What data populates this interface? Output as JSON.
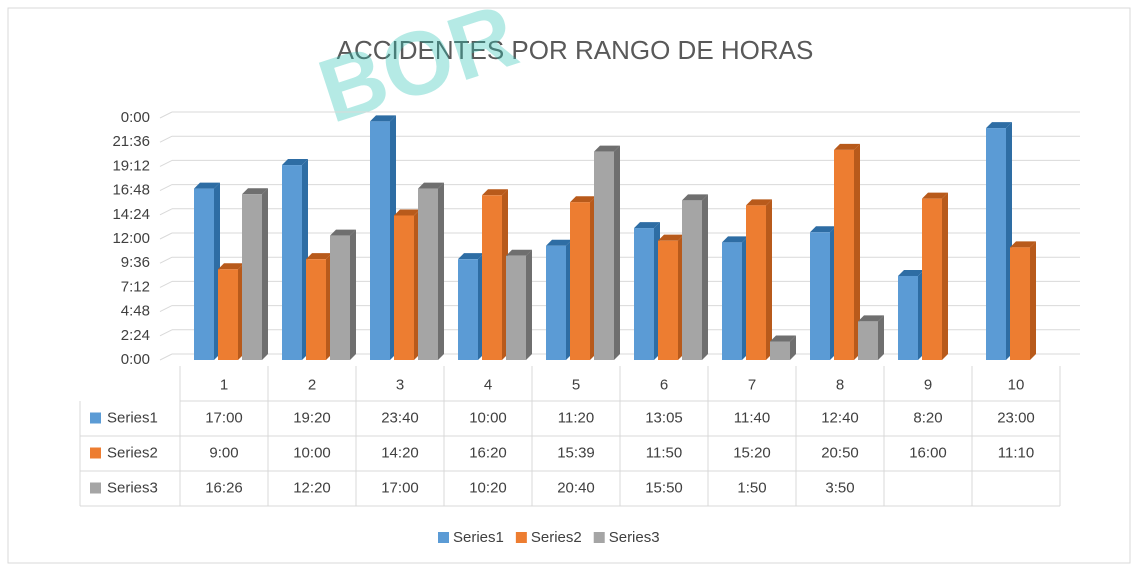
{
  "chart_data": {
    "type": "bar3d",
    "title": "ACCIDENTES POR RANGO DE HORAS",
    "watermark": "BOR",
    "categories": [
      "1",
      "2",
      "3",
      "4",
      "5",
      "6",
      "7",
      "8",
      "9",
      "10"
    ],
    "ylim": [
      0,
      1440
    ],
    "yticks": [
      {
        "value": 0,
        "label": "0:00"
      },
      {
        "value": 144,
        "label": "2:24"
      },
      {
        "value": 288,
        "label": "4:48"
      },
      {
        "value": 432,
        "label": "7:12"
      },
      {
        "value": 576,
        "label": "9:36"
      },
      {
        "value": 720,
        "label": "12:00"
      },
      {
        "value": 864,
        "label": "14:24"
      },
      {
        "value": 1008,
        "label": "16:48"
      },
      {
        "value": 1152,
        "label": "19:12"
      },
      {
        "value": 1296,
        "label": "21:36"
      },
      {
        "value": 1440,
        "label": "0:00"
      }
    ],
    "grid": true,
    "legend": "bottom",
    "series": [
      {
        "name": "Series1",
        "color": "#5b9bd5",
        "side": "#2e6da4",
        "values": [
          1020,
          1160,
          1420,
          600,
          680,
          785,
          700,
          760,
          500,
          1380
        ],
        "value_labels": [
          "17:00",
          "19:20",
          "23:40",
          "10:00",
          "11:20",
          "13:05",
          "11:40",
          "12:40",
          "8:20",
          "23:00"
        ]
      },
      {
        "name": "Series2",
        "color": "#ed7d31",
        "side": "#b85a1b",
        "values": [
          540,
          600,
          860,
          980,
          939,
          710,
          920,
          1250,
          960,
          670
        ],
        "value_labels": [
          "9:00",
          "10:00",
          "14:20",
          "16:20",
          "15:39",
          "11:50",
          "15:20",
          "20:50",
          "16:00",
          "11:10"
        ]
      },
      {
        "name": "Series3",
        "color": "#a5a5a5",
        "side": "#6f6f6f",
        "values": [
          986,
          740,
          1020,
          620,
          1240,
          950,
          110,
          230,
          null,
          null
        ],
        "value_labels": [
          "16:26",
          "12:20",
          "17:00",
          "10:20",
          "20:40",
          "15:50",
          "1:50",
          "3:50",
          null,
          null
        ]
      }
    ]
  }
}
